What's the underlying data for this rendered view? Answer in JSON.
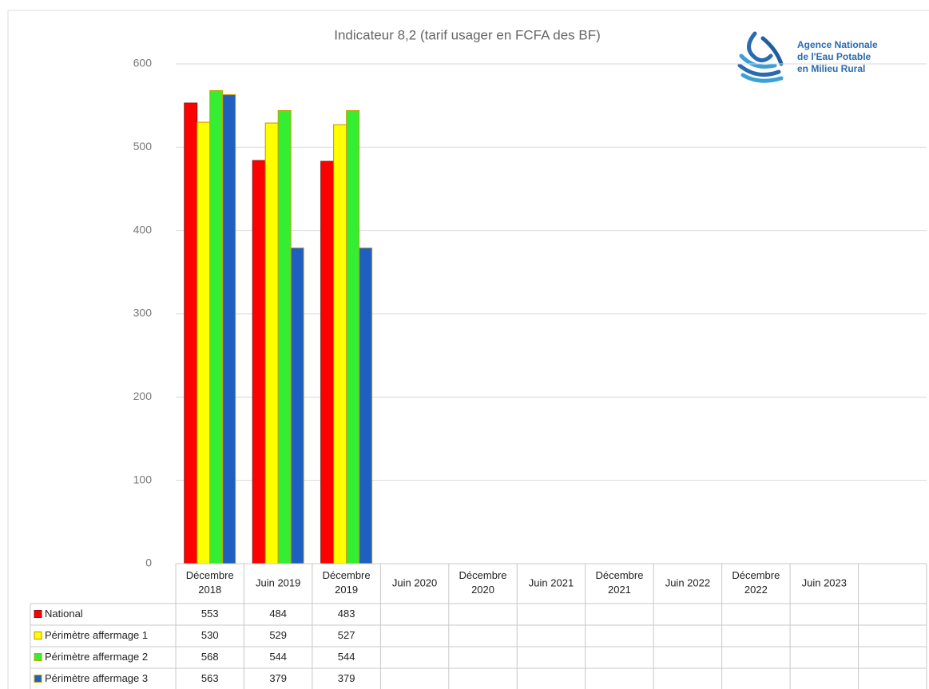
{
  "chart_data": {
    "type": "bar",
    "title": "Indicateur 8,2 (tarif usager en FCFA des BF)",
    "logo": [
      "Agence Nationale",
      "de l'Eau Potable",
      "en Milieu Rural"
    ],
    "categories": [
      "Décembre 2018",
      "Juin 2019",
      "Décembre 2019",
      "Juin 2020",
      "Décembre 2020",
      "Juin 2021",
      "Décembre 2021",
      "Juin 2022",
      "Décembre 2022",
      "Juin 2023",
      null
    ],
    "series": [
      {
        "name": "National",
        "color": "#ff0000",
        "edgecolor": "#8a1a1a",
        "values": [
          553,
          484,
          483,
          null,
          null,
          null,
          null,
          null,
          null,
          null,
          null
        ]
      },
      {
        "name": "Périmètre affermage 1",
        "color": "#ffff00",
        "edgecolor": "#d08a00",
        "values": [
          530,
          529,
          527,
          null,
          null,
          null,
          null,
          null,
          null,
          null,
          null
        ]
      },
      {
        "name": "Périmètre affermage 2",
        "color": "#33ee33",
        "edgecolor": "#c8a000",
        "values": [
          568,
          544,
          544,
          null,
          null,
          null,
          null,
          null,
          null,
          null,
          null
        ]
      },
      {
        "name": "Périmètre affermage 3",
        "color": "#1f5fbf",
        "edgecolor": "#c8a000",
        "values": [
          563,
          379,
          379,
          null,
          null,
          null,
          null,
          null,
          null,
          null,
          null
        ]
      }
    ],
    "ylim": [
      0,
      600
    ],
    "yticks": [
      0,
      100,
      200,
      300,
      400,
      500,
      600
    ],
    "grid": true,
    "data_table": true
  }
}
